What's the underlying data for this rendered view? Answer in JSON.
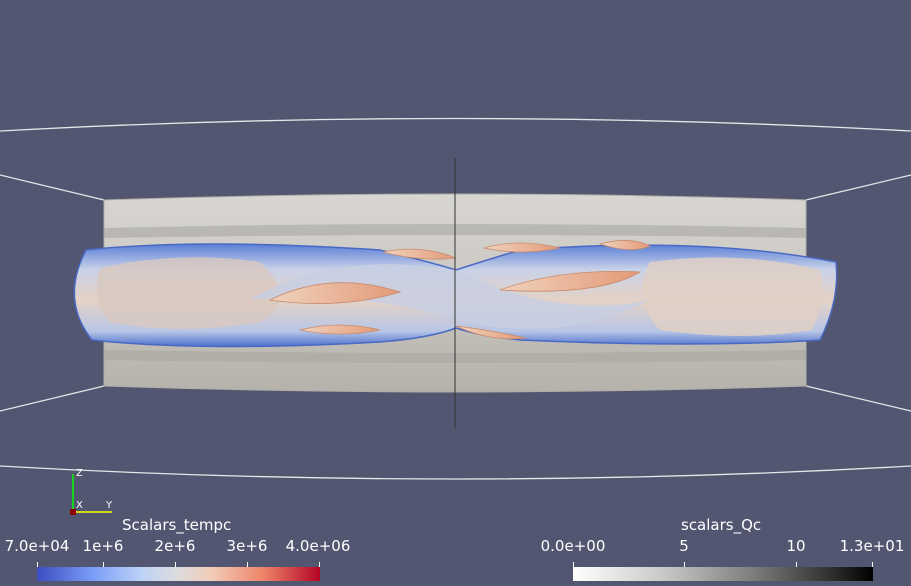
{
  "scene": {
    "background_color": "#525670",
    "outline_color": "#e8e8e8"
  },
  "axes_widget": {
    "labels": {
      "z": "Z",
      "x": "X",
      "y": "Y"
    },
    "colors": {
      "z": "#00ff00",
      "x": "#ff0000",
      "y": "#ffff00"
    }
  },
  "colorbar_temp": {
    "title": "Scalars_tempc",
    "colormap": "Cool to Warm",
    "range": [
      70000,
      4000000
    ],
    "ticks": [
      "7.0e+04",
      "1e+6",
      "2e+6",
      "3e+6",
      "4.0e+06"
    ]
  },
  "colorbar_qc": {
    "title": "scalars_Qc",
    "colormap": "Grayscale",
    "range": [
      0,
      13
    ],
    "ticks": [
      "0.0e+00",
      "5",
      "10",
      "1.3e+01"
    ]
  }
}
